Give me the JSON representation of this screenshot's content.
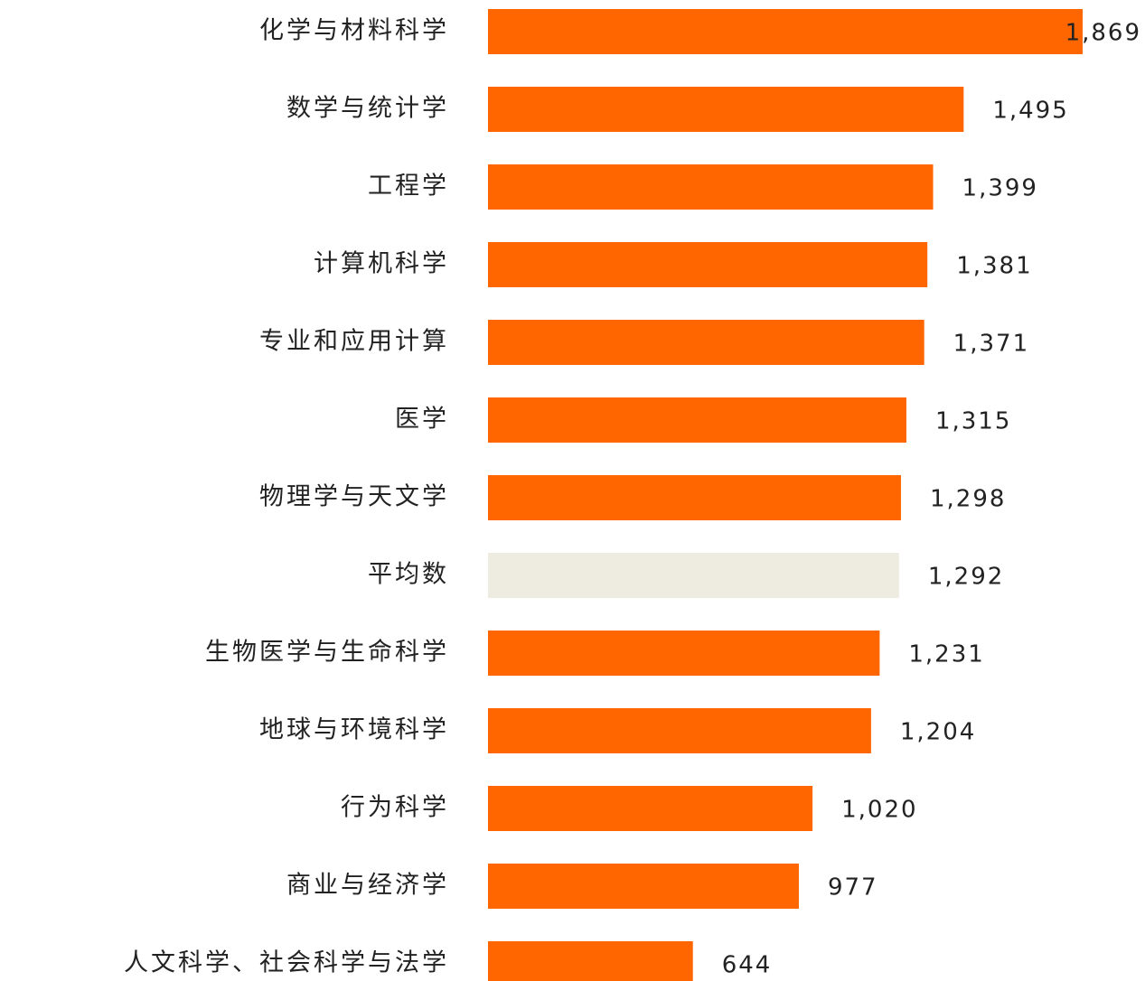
{
  "chart_data": {
    "type": "barh",
    "categories": [
      "化学与材料科学",
      "数学与统计学",
      "工程学",
      "计算机科学",
      "专业和应用计算",
      "医学",
      "物理学与天文学",
      "平均数",
      "生物医学与生命科学",
      "地球与环境科学",
      "行为科学",
      "商业与经济学",
      "人文科学、社会科学与法学"
    ],
    "values": [
      1869,
      1495,
      1399,
      1381,
      1371,
      1315,
      1298,
      1292,
      1231,
      1204,
      1020,
      977,
      644
    ],
    "value_labels": [
      "1,869",
      "1,495",
      "1,399",
      "1,381",
      "1,371",
      "1,315",
      "1,298",
      "1,292",
      "1,231",
      "1,204",
      "1,020",
      "977",
      "644"
    ],
    "colors": [
      "#ff6600",
      "#ff6600",
      "#ff6600",
      "#ff6600",
      "#ff6600",
      "#ff6600",
      "#ff6600",
      "#eeece1",
      "#ff6600",
      "#ff6600",
      "#ff6600",
      "#ff6600",
      "#ff6600"
    ]
  }
}
